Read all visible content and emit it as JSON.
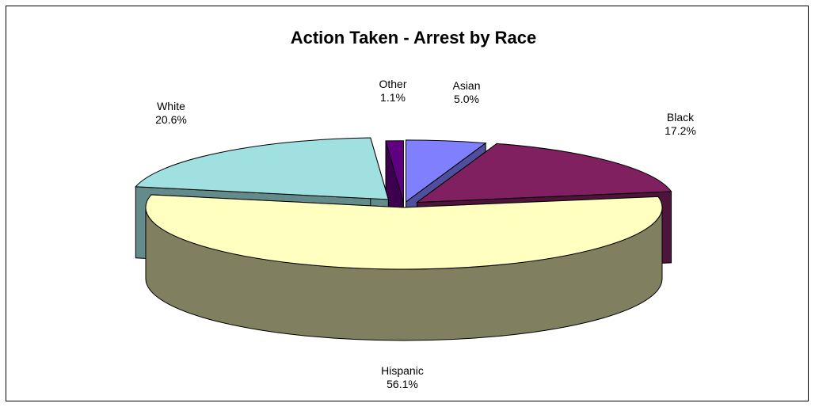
{
  "chart_data": {
    "type": "pie",
    "style": "3d-exploded",
    "title": "Action Taken - Arrest by Race",
    "slices": [
      {
        "name": "Asian",
        "value": 5.0,
        "label": "5.0%",
        "color": "#8080ff"
      },
      {
        "name": "Black",
        "value": 17.2,
        "label": "17.2%",
        "color": "#802060"
      },
      {
        "name": "Hispanic",
        "value": 56.1,
        "label": "56.1%",
        "color": "#ffffc0"
      },
      {
        "name": "White",
        "value": 20.6,
        "label": "20.6%",
        "color": "#a0e0e0"
      },
      {
        "name": "Other",
        "value": 1.1,
        "label": "1.1%",
        "color": "#600080"
      }
    ],
    "legend": "none"
  }
}
